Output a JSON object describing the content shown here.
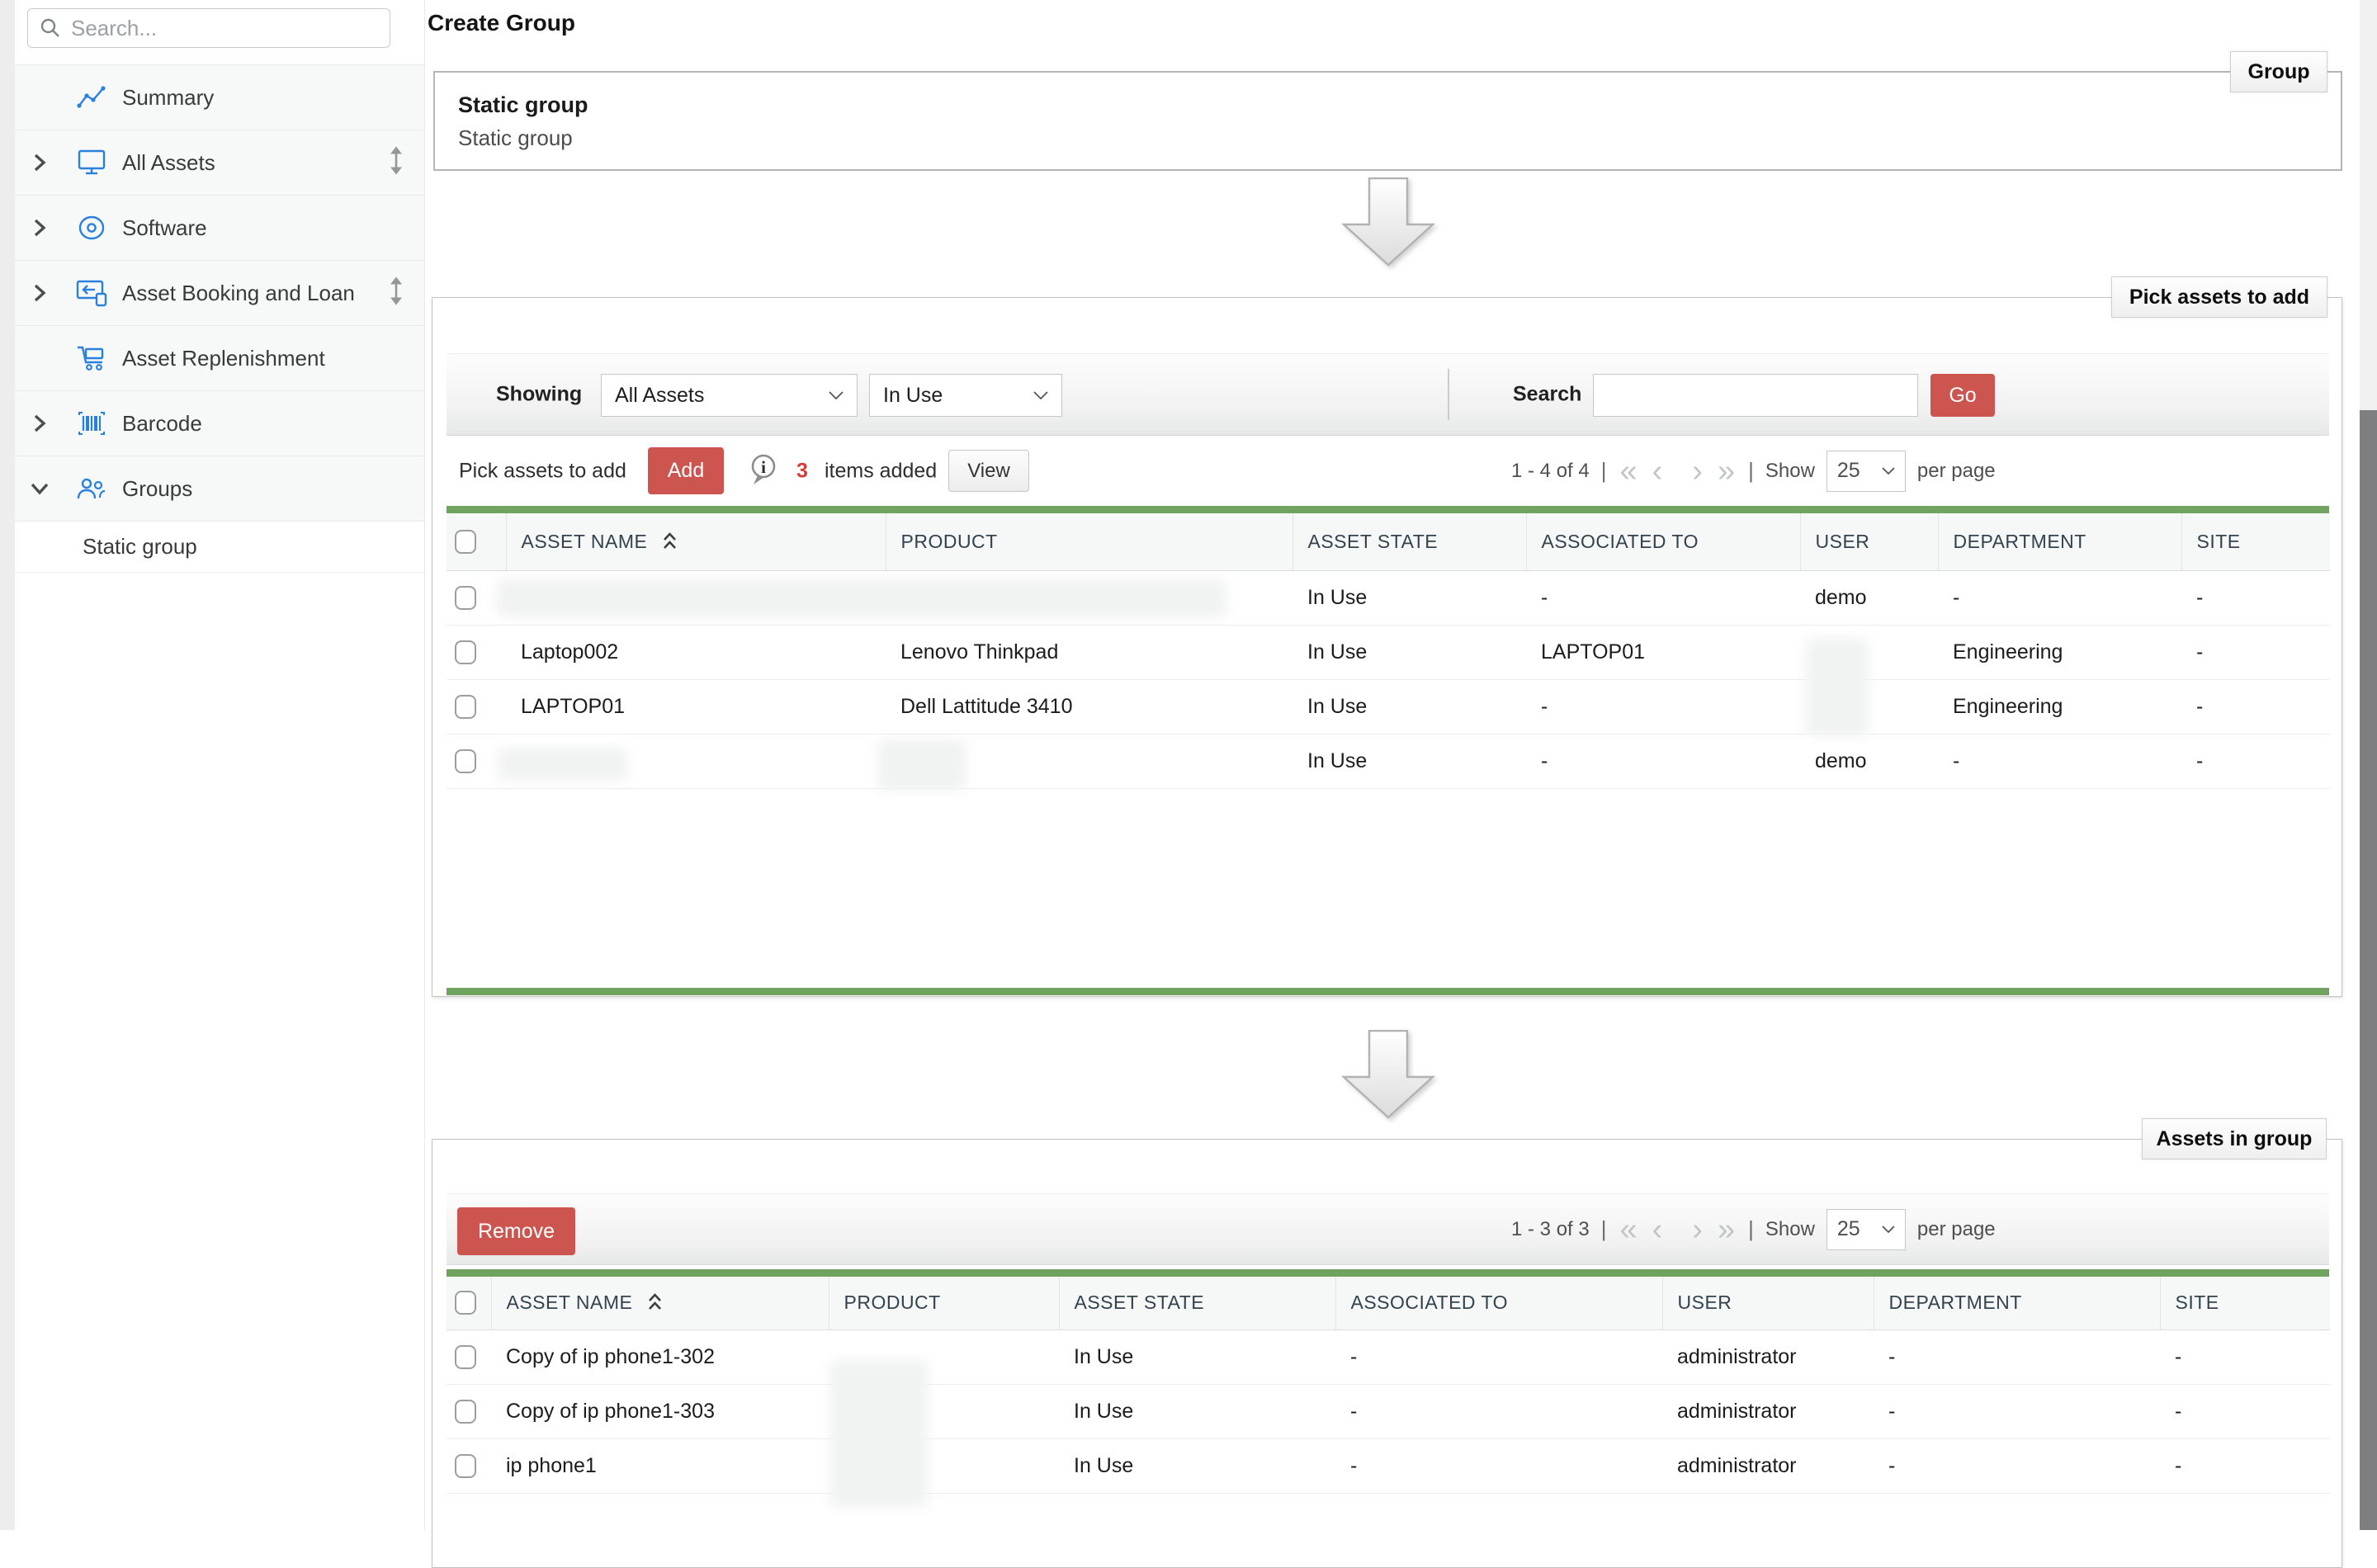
{
  "header": {
    "title": "Create Group"
  },
  "sidebar": {
    "search": {
      "placeholder": "Search..."
    },
    "items": [
      {
        "label": "Summary"
      },
      {
        "label": "All Assets"
      },
      {
        "label": "Software"
      },
      {
        "label": "Asset Booking and Loan"
      },
      {
        "label": "Asset Replenishment"
      },
      {
        "label": "Barcode"
      },
      {
        "label": "Groups"
      }
    ],
    "subitems": [
      {
        "label": "Static group"
      }
    ]
  },
  "group_box": {
    "tab_label": "Group",
    "name": "Static group",
    "description": "Static group"
  },
  "pagination_icons": {
    "first": "«",
    "prev": "‹",
    "next": "›",
    "last": "»",
    "sep": "|"
  },
  "pick_panel": {
    "tab_label": "Pick assets to add",
    "filters": {
      "showing_label": "Showing",
      "view_filter": "All Assets",
      "state_filter": "In Use",
      "search_label": "Search",
      "search_value": "",
      "go_label": "Go"
    },
    "toolbar": {
      "pick_label": "Pick assets to add",
      "add_label": "Add",
      "items_added_count": "3",
      "items_added_label": "items added",
      "view_label": "View"
    },
    "pagination": {
      "range": "1 - 4 of 4",
      "show_label": "Show",
      "page_size": "25",
      "per_page_label": "per page"
    },
    "table": {
      "columns": [
        "ASSET NAME",
        "PRODUCT",
        "ASSET STATE",
        "ASSOCIATED TO",
        "USER",
        "DEPARTMENT",
        "SITE"
      ],
      "rows": [
        {
          "asset_name": "'",
          "product": "",
          "asset_state": "In Use",
          "associated_to": "-",
          "user": "demo",
          "department": "-",
          "site": "-",
          "redacted": [
            "asset_name",
            "product"
          ]
        },
        {
          "asset_name": "Laptop002",
          "product": "Lenovo Thinkpad",
          "asset_state": "In Use",
          "associated_to": "LAPTOP01",
          "user": "",
          "department": "Engineering",
          "site": "-",
          "redacted": [
            "user"
          ]
        },
        {
          "asset_name": "LAPTOP01",
          "product": "Dell Lattitude 3410",
          "asset_state": "In Use",
          "associated_to": "-",
          "user": "",
          "department": "Engineering",
          "site": "-",
          "redacted": [
            "user"
          ]
        },
        {
          "asset_name": "",
          "product": "",
          "asset_state": "In Use",
          "associated_to": "-",
          "user": "demo",
          "department": "-",
          "site": "-",
          "redacted": [
            "asset_name",
            "product"
          ]
        }
      ]
    }
  },
  "assets_panel": {
    "tab_label": "Assets in group",
    "toolbar": {
      "remove_label": "Remove"
    },
    "pagination": {
      "range": "1 - 3 of 3",
      "show_label": "Show",
      "page_size": "25",
      "per_page_label": "per page"
    },
    "table": {
      "columns": [
        "ASSET NAME",
        "PRODUCT",
        "ASSET STATE",
        "ASSOCIATED TO",
        "USER",
        "DEPARTMENT",
        "SITE"
      ],
      "rows": [
        {
          "asset_name": "Copy of ip phone1-302",
          "product": "",
          "asset_state": "In Use",
          "associated_to": "-",
          "user": "administrator",
          "department": "-",
          "site": "-",
          "redacted": [
            "product"
          ]
        },
        {
          "asset_name": "Copy of ip phone1-303",
          "product": "",
          "asset_state": "In Use",
          "associated_to": "-",
          "user": "administrator",
          "department": "-",
          "site": "-",
          "redacted": [
            "product"
          ]
        },
        {
          "asset_name": "ip phone1",
          "product": "",
          "asset_state": "In Use",
          "associated_to": "-",
          "user": "administrator",
          "department": "-",
          "site": "-",
          "redacted": [
            "product"
          ]
        }
      ]
    }
  }
}
